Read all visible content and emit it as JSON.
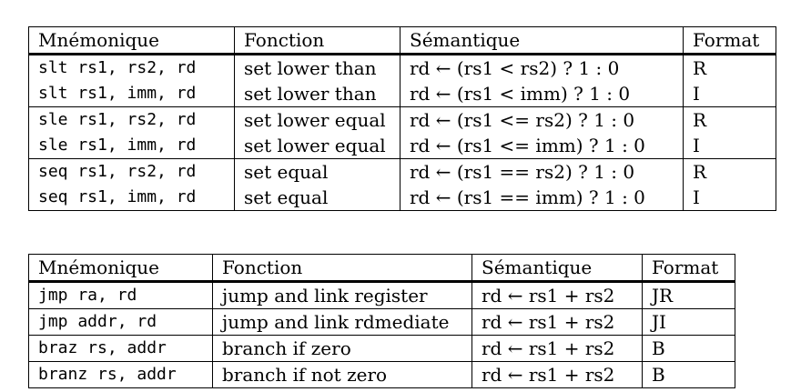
{
  "table1": {
    "headers": [
      "Mnémonique",
      "Fonction",
      "Sémantique",
      "Format"
    ],
    "rows": [
      {
        "mnemonic": "slt rs1, rs2, rd",
        "fonction": "set lower than",
        "semantique": "rd ← (rs1 < rs2) ? 1 : 0",
        "format": "R"
      },
      {
        "mnemonic": "slt rs1, imm, rd",
        "fonction": "set lower than",
        "semantique": "rd ← (rs1 < imm) ? 1 : 0",
        "format": "I"
      },
      {
        "mnemonic": "sle rs1, rs2, rd",
        "fonction": "set lower equal",
        "semantique": "rd ← (rs1 <= rs2) ? 1 : 0",
        "format": "R"
      },
      {
        "mnemonic": "sle rs1, imm, rd",
        "fonction": "set lower equal",
        "semantique": "rd ← (rs1 <= imm) ? 1 : 0",
        "format": "I"
      },
      {
        "mnemonic": "seq rs1, rs2, rd",
        "fonction": "set equal",
        "semantique": "rd ← (rs1 == rs2) ? 1 : 0",
        "format": "R"
      },
      {
        "mnemonic": "seq rs1, imm, rd",
        "fonction": "set equal",
        "semantique": "rd ← (rs1 == imm) ? 1 : 0",
        "format": "I"
      }
    ]
  },
  "table2": {
    "headers": [
      "Mnémonique",
      "Fonction",
      "Sémantique",
      "Format"
    ],
    "rows": [
      {
        "mnemonic": "jmp ra, rd",
        "fonction": "jump and link register",
        "semantique": "rd ← rs1 + rs2",
        "format": "JR"
      },
      {
        "mnemonic": "jmp addr, rd",
        "fonction": "jump and link rdmediate",
        "semantique": "rd ← rs1 + rs2",
        "format": "JI"
      },
      {
        "mnemonic": "braz rs, addr",
        "fonction": "branch if zero",
        "semantique": "rd ← rs1 + rs2",
        "format": "B"
      },
      {
        "mnemonic": "branz rs, addr",
        "fonction": "branch if not zero",
        "semantique": "rd ← rs1 + rs2",
        "format": "B"
      }
    ]
  }
}
